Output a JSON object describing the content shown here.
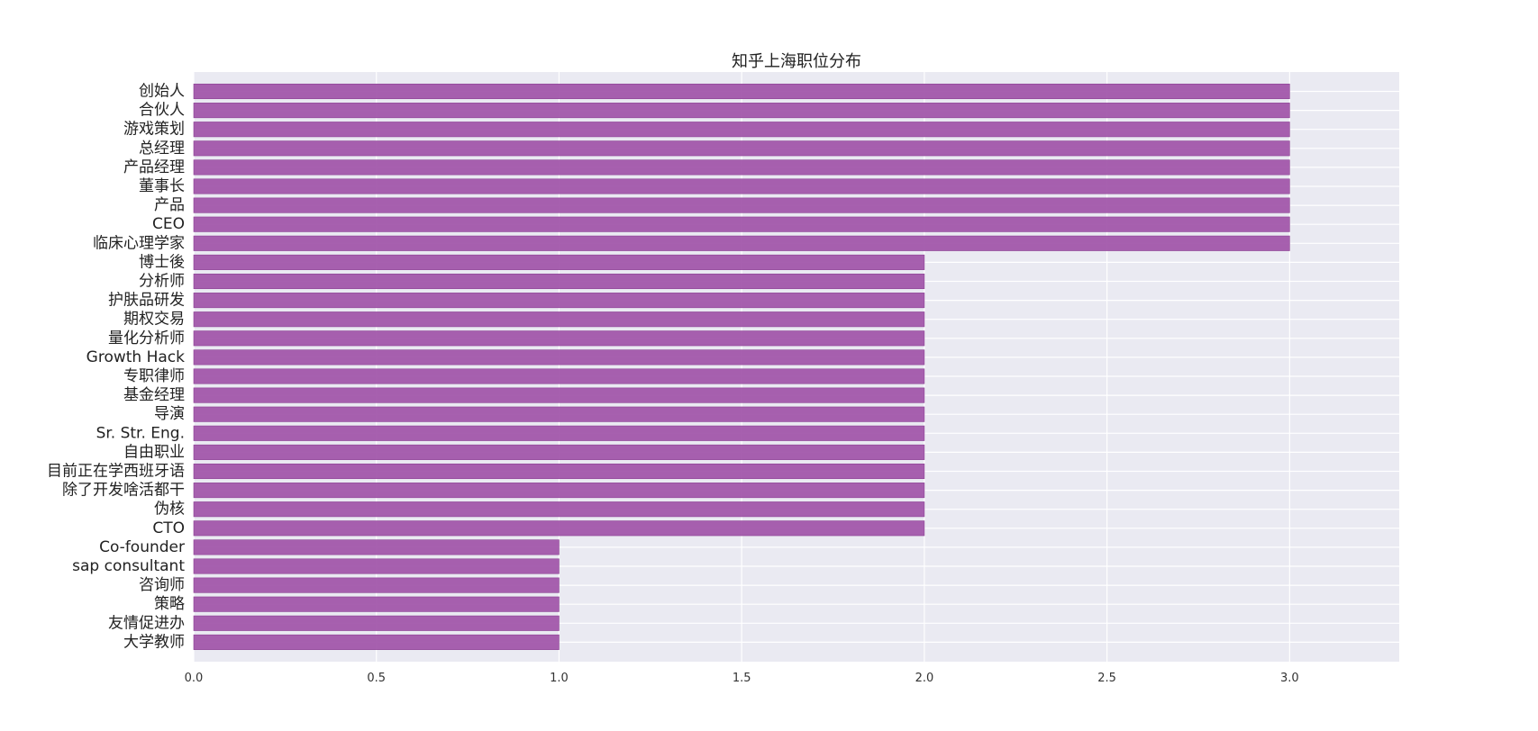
{
  "chart_data": {
    "type": "bar",
    "orientation": "horizontal",
    "title": "知乎上海职位分布",
    "xlabel": "",
    "ylabel": "",
    "xlim": [
      0,
      3.3
    ],
    "xticks": [
      "0.0",
      "0.5",
      "1.0",
      "1.5",
      "2.0",
      "2.5",
      "3.0"
    ],
    "grid": true,
    "categories": [
      "创始人",
      "合伙人",
      "游戏策划",
      "总经理",
      "产品经理",
      "董事长",
      "产品",
      "CEO",
      "临床心理学家",
      "博士後",
      "分析师",
      "护肤品研发",
      "期权交易",
      "量化分析师",
      "Growth Hack",
      "专职律师",
      "基金经理",
      "导演",
      "Sr. Str. Eng.",
      "自由职业",
      "目前正在学西班牙语",
      "除了开发啥活都干",
      "伪核",
      "CTO",
      "Co-founder",
      "sap consultant",
      "咨询师",
      "策略",
      "友情促进办",
      "大学教师"
    ],
    "values": [
      3,
      3,
      3,
      3,
      3,
      3,
      3,
      3,
      3,
      2,
      2,
      2,
      2,
      2,
      2,
      2,
      2,
      2,
      2,
      2,
      2,
      2,
      2,
      2,
      1,
      1,
      1,
      1,
      1,
      1
    ],
    "bar_color": "#a052a8",
    "plot_background": "#eaeaf2",
    "grid_color": "#ffffff"
  }
}
